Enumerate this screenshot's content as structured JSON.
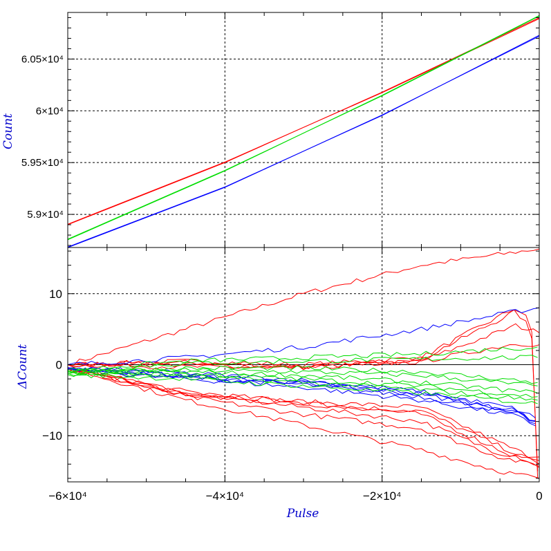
{
  "chart_data": [
    {
      "panel": "top",
      "type": "line",
      "ylabel": "Count",
      "xlim": [
        -60000,
        0
      ],
      "ylim": [
        58680,
        60950
      ],
      "grid": true,
      "yticks": [
        {
          "value": 59000,
          "label": "5.9×10⁴"
        },
        {
          "value": 59500,
          "label": "5.95×10⁴"
        },
        {
          "value": 60000,
          "label": "6×10⁴"
        },
        {
          "value": 60500,
          "label": "6.05×10⁴"
        }
      ],
      "series": [
        {
          "color": "#ff0000",
          "x": [
            -60000,
            -40000,
            -20000,
            0
          ],
          "y": [
            58900,
            59500,
            60180,
            60900
          ]
        },
        {
          "color": "#ff0000",
          "x": [
            -60000,
            -40000,
            -20000,
            0
          ],
          "y": [
            58905,
            59505,
            60175,
            60890
          ]
        },
        {
          "color": "#00dd00",
          "x": [
            -60000,
            -40000,
            -20000,
            0
          ],
          "y": [
            58755,
            59420,
            60150,
            60920
          ]
        },
        {
          "color": "#00dd00",
          "x": [
            -60000,
            -40000,
            -20000,
            0
          ],
          "y": [
            58760,
            59425,
            60145,
            60915
          ]
        },
        {
          "color": "#0000ff",
          "x": [
            -60000,
            -40000,
            -20000,
            0
          ],
          "y": [
            58680,
            59260,
            59960,
            60720
          ]
        },
        {
          "color": "#0000ff",
          "x": [
            -60000,
            -40000,
            -20000,
            0
          ],
          "y": [
            58685,
            59265,
            59955,
            60730
          ]
        }
      ]
    },
    {
      "panel": "bottom",
      "type": "line",
      "xlabel": "Pulse",
      "ylabel": "ΔCount",
      "xlim": [
        -60000,
        0
      ],
      "ylim": [
        -16.5,
        16.5
      ],
      "grid": true,
      "xticks": [
        {
          "value": -60000,
          "label": "−6×10⁴"
        },
        {
          "value": -40000,
          "label": "−4×10⁴"
        },
        {
          "value": -20000,
          "label": "−2×10⁴"
        },
        {
          "value": 0,
          "label": "0"
        }
      ],
      "yticks": [
        {
          "value": -10,
          "label": "−10"
        },
        {
          "value": 0,
          "label": "0"
        },
        {
          "value": 10,
          "label": "10"
        }
      ],
      "series": [
        {
          "color": "#ff0000",
          "x": [
            -60000,
            -45000,
            -30000,
            -15000,
            -2000,
            0
          ],
          "y": [
            0,
            5,
            10,
            14,
            16,
            16.3
          ]
        },
        {
          "color": "#ff0000",
          "x": [
            -60000,
            -45000,
            -30000,
            -15000,
            -3000,
            -1000,
            -200
          ],
          "y": [
            0,
            0.5,
            0,
            1,
            8,
            6,
            -16
          ]
        },
        {
          "color": "#ff0000",
          "x": [
            -60000,
            -45000,
            -30000,
            -15000,
            -3000,
            -1000,
            -200
          ],
          "y": [
            0,
            0.3,
            -0.3,
            0.8,
            7.5,
            5,
            -15
          ]
        },
        {
          "color": "#ff0000",
          "x": [
            -60000,
            -45000,
            -30000,
            -15000,
            -3000,
            0
          ],
          "y": [
            0,
            -0.3,
            -0.5,
            0.5,
            5.5,
            4.5
          ]
        },
        {
          "color": "#ff0000",
          "x": [
            -60000,
            -45000,
            -30000,
            -15000,
            -3000,
            0
          ],
          "y": [
            0,
            0,
            -0.4,
            0.4,
            3,
            2.8
          ]
        },
        {
          "color": "#ff0000",
          "x": [
            -60000,
            -45000,
            -30000,
            -15000,
            -5000,
            0
          ],
          "y": [
            -0.5,
            -4,
            -5.2,
            -6,
            -11,
            -13.5
          ]
        },
        {
          "color": "#ff0000",
          "x": [
            -60000,
            -45000,
            -30000,
            -15000,
            -5000,
            0
          ],
          "y": [
            -0.6,
            -4.3,
            -5.6,
            -6.5,
            -11.5,
            -14
          ]
        },
        {
          "color": "#ff0000",
          "x": [
            -60000,
            -45000,
            -30000,
            -15000,
            -5000,
            0
          ],
          "y": [
            -0.4,
            -3.8,
            -5.3,
            -7,
            -12,
            -14.5
          ]
        },
        {
          "color": "#ff0000",
          "x": [
            -60000,
            -45000,
            -30000,
            -15000,
            -5000,
            0
          ],
          "y": [
            -0.5,
            -4.1,
            -6,
            -8,
            -12.5,
            -13
          ]
        },
        {
          "color": "#ff0000",
          "x": [
            -60000,
            -45000,
            -30000,
            -15000,
            -5000,
            0
          ],
          "y": [
            -0.5,
            -4.5,
            -7,
            -9,
            -13,
            -14.3
          ]
        },
        {
          "color": "#ff0000",
          "x": [
            -60000,
            -45000,
            -30000,
            -15000,
            -5000,
            0
          ],
          "y": [
            -0.5,
            -5,
            -8.5,
            -12,
            -15,
            -16
          ]
        },
        {
          "color": "#0000ff",
          "x": [
            -60000,
            -45000,
            -30000,
            -15000,
            -3000,
            0
          ],
          "y": [
            0,
            1,
            2.5,
            5,
            7.5,
            8
          ]
        },
        {
          "color": "#0000ff",
          "x": [
            -60000,
            -45000,
            -30000,
            -15000,
            -3000,
            -500
          ],
          "y": [
            -0.5,
            -1.5,
            -2.5,
            -4,
            -6.5,
            -8
          ]
        },
        {
          "color": "#0000ff",
          "x": [
            -60000,
            -45000,
            -30000,
            -15000,
            -3000,
            -500
          ],
          "y": [
            -0.6,
            -1.8,
            -2.8,
            -4.5,
            -6.8,
            -8.3
          ]
        },
        {
          "color": "#0000ff",
          "x": [
            -60000,
            -45000,
            -30000,
            -15000,
            -3000,
            -500
          ],
          "y": [
            -0.7,
            -2,
            -3.2,
            -5,
            -7.2,
            -8.6
          ]
        },
        {
          "color": "#0000ff",
          "x": [
            -60000,
            -45000,
            -30000,
            -15000,
            -3000,
            -500
          ],
          "y": [
            -0.4,
            -1.2,
            -2.2,
            -3.8,
            -6.2,
            -7.5
          ]
        },
        {
          "color": "#0000ff",
          "x": [
            -60000,
            -45000,
            -30000,
            -15000,
            -3000,
            -500
          ],
          "y": [
            -0.5,
            -1.6,
            -2.6,
            -4.2,
            -6.6,
            -7.9
          ]
        },
        {
          "color": "#00dd00",
          "x": [
            -60000,
            -45000,
            -30000,
            -15000,
            -5000,
            -200
          ],
          "y": [
            -0.8,
            0.5,
            1,
            1.5,
            2.2,
            2.5
          ]
        },
        {
          "color": "#00dd00",
          "x": [
            -60000,
            -45000,
            -30000,
            -15000,
            -5000,
            -200
          ],
          "y": [
            -0.9,
            0.2,
            0.5,
            0.8,
            1,
            1
          ]
        },
        {
          "color": "#00dd00",
          "x": [
            -60000,
            -45000,
            -30000,
            -15000,
            -5000,
            -200
          ],
          "y": [
            -1,
            -0.5,
            -0.5,
            -1,
            -2,
            -2.5
          ]
        },
        {
          "color": "#00dd00",
          "x": [
            -60000,
            -45000,
            -30000,
            -15000,
            -5000,
            -200
          ],
          "y": [
            -1,
            -0.8,
            -1,
            -1.5,
            -2.5,
            -3
          ]
        },
        {
          "color": "#00dd00",
          "x": [
            -60000,
            -45000,
            -30000,
            -15000,
            -5000,
            -200
          ],
          "y": [
            -1.1,
            -1,
            -1.5,
            -2.5,
            -3.5,
            -4
          ]
        },
        {
          "color": "#00dd00",
          "x": [
            -60000,
            -45000,
            -30000,
            -15000,
            -5000,
            -200
          ],
          "y": [
            -1.2,
            -1.3,
            -2,
            -3,
            -4,
            -4.5
          ]
        },
        {
          "color": "#00dd00",
          "x": [
            -60000,
            -45000,
            -30000,
            -15000,
            -5000,
            -200
          ],
          "y": [
            -1.3,
            -1.6,
            -2.5,
            -3.5,
            -4.5,
            -5
          ]
        },
        {
          "color": "#00dd00",
          "x": [
            -60000,
            -45000,
            -30000,
            -15000,
            -5000,
            -200
          ],
          "y": [
            -1.4,
            -2,
            -3,
            -4,
            -5,
            -5.5
          ]
        }
      ]
    }
  ]
}
